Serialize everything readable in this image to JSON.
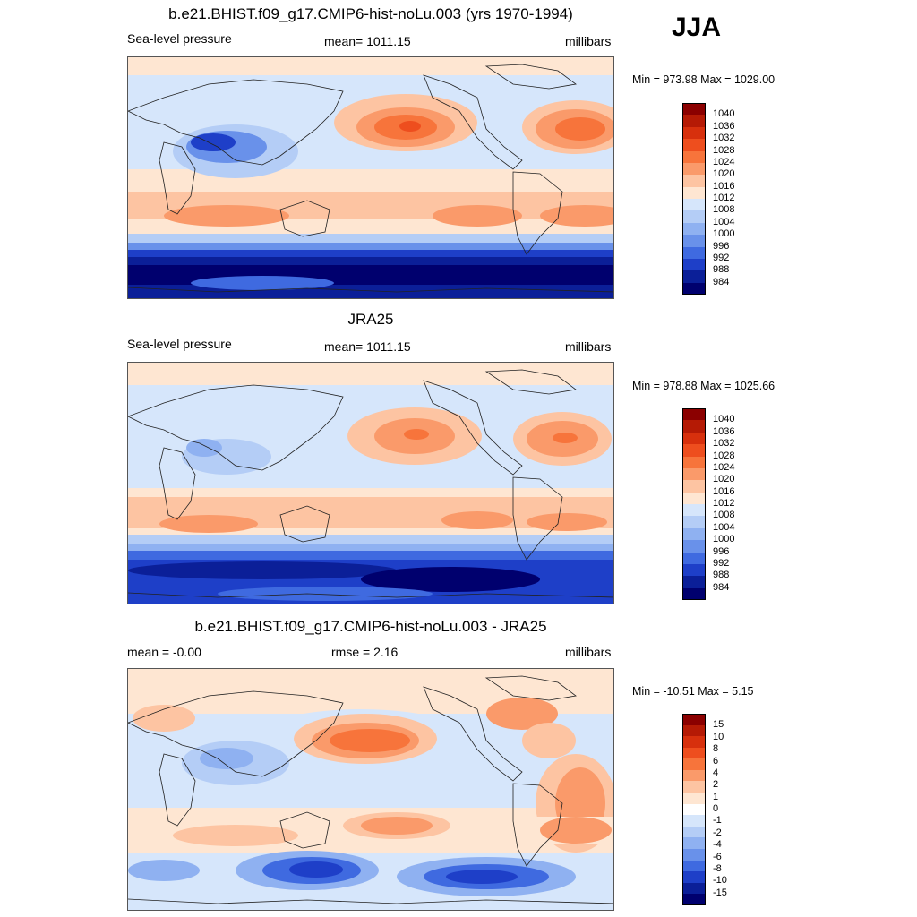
{
  "season": "JJA",
  "panels": [
    {
      "title": "b.e21.BHIST.f09_g17.CMIP6-hist-noLu.003 (yrs 1970-1994)",
      "left_label": "Sea-level pressure",
      "center_label": "mean= 1011.15",
      "right_label": "millibars",
      "minmax": "Min = 973.98 Max = 1029.00",
      "ticks": [
        "1040",
        "1036",
        "1032",
        "1028",
        "1024",
        "1020",
        "1016",
        "1012",
        "1008",
        "1004",
        "1000",
        "996",
        "992",
        "988",
        "984"
      ]
    },
    {
      "title": "JRA25",
      "left_label": "Sea-level pressure",
      "center_label": "mean= 1011.15",
      "right_label": "millibars",
      "minmax": "Min = 978.88 Max = 1025.66",
      "ticks": [
        "1040",
        "1036",
        "1032",
        "1028",
        "1024",
        "1020",
        "1016",
        "1012",
        "1008",
        "1004",
        "1000",
        "996",
        "992",
        "988",
        "984"
      ]
    },
    {
      "title": "b.e21.BHIST.f09_g17.CMIP6-hist-noLu.003 - JRA25",
      "left_label": "mean =  -0.00",
      "center_label": "rmse =   2.16",
      "right_label": "millibars",
      "minmax": "Min = -10.51 Max =   5.15",
      "ticks": [
        "15",
        "10",
        "8",
        "6",
        "4",
        "2",
        "1",
        "0",
        "-1",
        "-2",
        "-4",
        "-6",
        "-8",
        "-10",
        "-15"
      ]
    }
  ],
  "colors": {
    "abs_scale": [
      "#8b0000",
      "#b51a05",
      "#d7300d",
      "#ee4e1e",
      "#f7743b",
      "#fa9a6a",
      "#fdc4a2",
      "#fee6d2",
      "#d6e6fb",
      "#b4cdf6",
      "#8fb1f1",
      "#6991ea",
      "#3f6ae0",
      "#1e3fc8",
      "#0b1f98",
      "#00006e"
    ],
    "diff_scale": [
      "#8b0000",
      "#b51a05",
      "#d7300d",
      "#ee4e1e",
      "#f7743b",
      "#fa9a6a",
      "#fdc4a2",
      "#fee6d2",
      "#ffffff",
      "#d6e6fb",
      "#b4cdf6",
      "#8fb1f1",
      "#6991ea",
      "#3f6ae0",
      "#1e3fc8",
      "#0b1f98",
      "#00006e"
    ]
  }
}
